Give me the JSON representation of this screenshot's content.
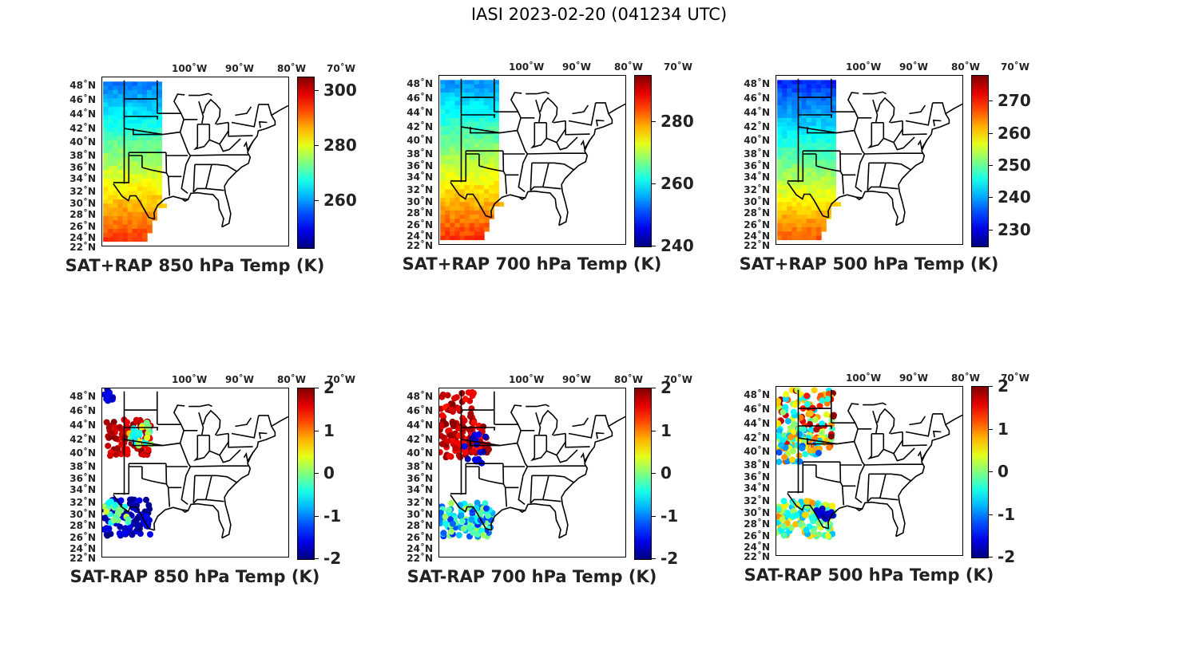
{
  "figure_title": "IASI 2023-02-20 (041234 UTC)",
  "lon_labels": [
    "100˚W",
    "90˚W",
    "80˚W",
    "70˚W"
  ],
  "lat_labels": [
    "48˚N",
    "46˚N",
    "44˚N",
    "42˚N",
    "40˚N",
    "38˚N",
    "36˚N",
    "34˚N",
    "32˚N",
    "30˚N",
    "28˚N",
    "26˚N",
    "24˚N",
    "22˚N"
  ],
  "panels": [
    {
      "title": "SAT+RAP 850 hPa Temp (K)",
      "colorbar": {
        "min": 243,
        "max": 305,
        "ticks": [
          "300",
          "280",
          "260"
        ],
        "tick_values": [
          300,
          280,
          260
        ]
      }
    },
    {
      "title": "SAT+RAP 700 hPa Temp (K)",
      "colorbar": {
        "min": 240,
        "max": 295,
        "ticks": [
          "280",
          "260",
          "240"
        ],
        "tick_values": [
          280,
          260,
          240
        ]
      }
    },
    {
      "title": "SAT+RAP 500 hPa Temp (K)",
      "colorbar": {
        "min": 225,
        "max": 278,
        "ticks": [
          "270",
          "260",
          "250",
          "240",
          "230"
        ],
        "tick_values": [
          270,
          260,
          250,
          240,
          230
        ]
      }
    },
    {
      "title": "SAT-RAP 850 hPa Temp (K)",
      "colorbar": {
        "min": -2,
        "max": 2,
        "ticks": [
          "2",
          "1",
          "0",
          "-1",
          "-2"
        ],
        "tick_values": [
          2,
          1,
          0,
          -1,
          -2
        ]
      }
    },
    {
      "title": "SAT-RAP 700 hPa Temp (K)",
      "colorbar": {
        "min": -2,
        "max": 2,
        "ticks": [
          "2",
          "1",
          "0",
          "-1",
          "-2"
        ],
        "tick_values": [
          2,
          1,
          0,
          -1,
          -2
        ]
      }
    },
    {
      "title": "SAT-RAP 500 hPa Temp (K)",
      "colorbar": {
        "min": -2,
        "max": 2,
        "ticks": [
          "2",
          "1",
          "0",
          "-1",
          "-2"
        ],
        "tick_values": [
          2,
          1,
          0,
          -1,
          -2
        ]
      }
    }
  ],
  "colors": {
    "colormap": "jet",
    "map_lines": "#000000"
  }
}
